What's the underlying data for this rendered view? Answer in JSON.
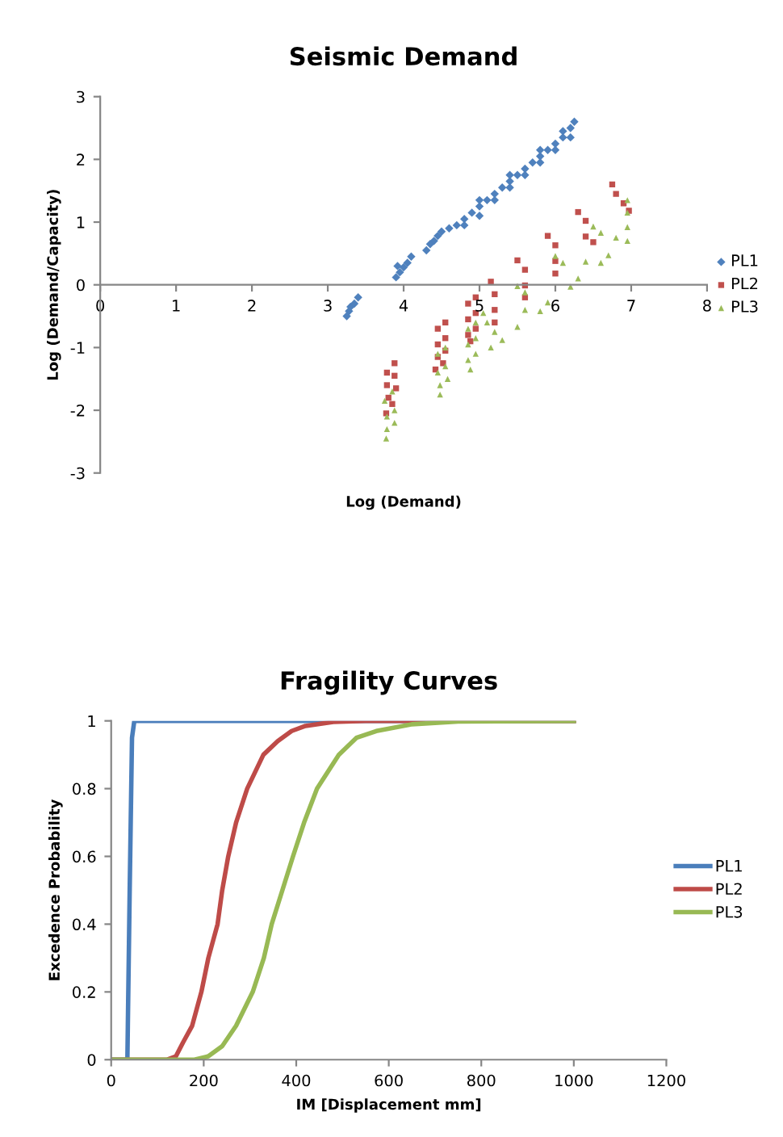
{
  "chart_data": [
    {
      "type": "scatter",
      "title": "Seismic Demand",
      "xlabel": "Log (Demand)",
      "ylabel": "Log (Demand/Capacity)",
      "xlim": [
        0,
        8
      ],
      "xticks": [
        0,
        1,
        2,
        3,
        4,
        5,
        6,
        7,
        8
      ],
      "ylim": [
        -3,
        3
      ],
      "yticks": [
        -3,
        -2,
        -1,
        0,
        1,
        2,
        3
      ],
      "grid": false,
      "legend": "right",
      "series": [
        {
          "name": "PL1",
          "color": "#4f81bd",
          "marker": "diamond",
          "x": [
            3.28,
            3.3,
            3.35,
            3.4,
            3.25,
            3.9,
            3.95,
            4.0,
            4.05,
            4.1,
            3.92,
            4.3,
            4.35,
            4.4,
            4.45,
            4.5,
            4.6,
            4.7,
            4.8,
            4.9,
            5.0,
            5.1,
            5.2,
            5.3,
            5.4,
            5.5,
            5.6,
            5.7,
            5.8,
            5.9,
            6.0,
            6.1,
            6.2,
            6.25,
            4.8,
            5.0,
            5.2,
            5.4,
            5.6,
            5.8,
            6.0,
            6.2,
            5.0,
            5.4,
            5.8,
            6.1
          ],
          "values": [
            -0.42,
            -0.35,
            -0.3,
            -0.2,
            -0.5,
            0.12,
            0.2,
            0.28,
            0.35,
            0.45,
            0.3,
            0.55,
            0.65,
            0.7,
            0.78,
            0.85,
            0.9,
            0.95,
            1.05,
            1.15,
            1.25,
            1.35,
            1.45,
            1.55,
            1.65,
            1.75,
            1.85,
            1.95,
            2.05,
            2.15,
            2.25,
            2.35,
            2.5,
            2.6,
            0.95,
            1.1,
            1.35,
            1.55,
            1.75,
            1.95,
            2.15,
            2.35,
            1.35,
            1.75,
            2.15,
            2.45
          ]
        },
        {
          "name": "PL2",
          "color": "#c0504d",
          "marker": "square",
          "x": [
            5.15,
            5.5,
            5.9,
            6.3,
            6.75,
            5.2,
            5.6,
            6.0,
            6.4,
            6.8,
            5.2,
            5.6,
            6.0,
            6.4,
            6.9,
            5.2,
            5.6,
            6.0,
            6.5,
            6.97,
            4.85,
            4.95,
            4.85,
            4.95,
            4.85,
            4.95,
            4.88,
            4.45,
            4.55,
            4.45,
            4.55,
            4.45,
            4.55,
            4.42,
            4.52,
            3.78,
            3.88,
            3.78,
            3.88,
            3.8,
            3.9,
            3.77,
            3.85
          ],
          "values": [
            0.05,
            0.39,
            0.78,
            1.16,
            1.6,
            -0.15,
            0.24,
            0.63,
            1.02,
            1.45,
            -0.4,
            -0.01,
            0.38,
            0.77,
            1.3,
            -0.6,
            -0.2,
            0.18,
            0.68,
            1.18,
            -0.3,
            -0.2,
            -0.55,
            -0.45,
            -0.8,
            -0.7,
            -0.9,
            -0.7,
            -0.6,
            -0.95,
            -0.85,
            -1.15,
            -1.05,
            -1.35,
            -1.25,
            -1.4,
            -1.25,
            -1.6,
            -1.45,
            -1.8,
            -1.65,
            -2.05,
            -1.9
          ]
        },
        {
          "name": "PL3",
          "color": "#9bbb59",
          "marker": "triangle",
          "x": [
            5.05,
            5.5,
            6.0,
            6.5,
            6.95,
            5.1,
            5.6,
            6.1,
            6.6,
            6.95,
            5.15,
            5.5,
            5.9,
            6.3,
            6.7,
            6.95,
            5.2,
            5.6,
            6.4,
            6.8,
            6.95,
            5.3,
            5.8,
            6.2,
            6.6,
            4.85,
            4.95,
            4.85,
            4.95,
            4.85,
            4.95,
            4.88,
            4.45,
            4.55,
            4.45,
            4.55,
            4.48,
            4.58,
            4.48,
            3.75,
            3.85,
            3.78,
            3.88,
            3.78,
            3.88,
            3.77
          ],
          "values": [
            -0.45,
            -0.02,
            0.46,
            0.93,
            1.35,
            -0.6,
            -0.12,
            0.35,
            0.83,
            1.15,
            -1.0,
            -0.67,
            -0.28,
            0.1,
            0.47,
            0.7,
            -0.75,
            -0.4,
            0.37,
            0.75,
            0.92,
            -0.88,
            -0.42,
            -0.03,
            0.35,
            -0.7,
            -0.6,
            -0.95,
            -0.85,
            -1.2,
            -1.1,
            -1.35,
            -1.1,
            -1.0,
            -1.4,
            -1.3,
            -1.6,
            -1.5,
            -1.75,
            -1.85,
            -1.7,
            -2.1,
            -2.0,
            -2.3,
            -2.2,
            -2.45
          ]
        }
      ]
    },
    {
      "type": "line",
      "title": "Fragility Curves",
      "xlabel": "IM [Displacement mm]",
      "ylabel": "Excedence Probability",
      "xlim": [
        0,
        1200
      ],
      "xticks": [
        0,
        200,
        400,
        600,
        800,
        1000,
        1200
      ],
      "ylim": [
        0,
        1
      ],
      "yticks": [
        0,
        0.2,
        0.4,
        0.6,
        0.8,
        1
      ],
      "grid": false,
      "legend": "right",
      "marker": "none",
      "line_style": "solid",
      "series": [
        {
          "name": "PL1",
          "color": "#4a7ebb",
          "x": [
            0,
            35,
            40,
            45,
            50,
            1000
          ],
          "values": [
            0,
            0,
            0.5,
            0.95,
            1,
            1
          ]
        },
        {
          "name": "PL2",
          "color": "#be4b48",
          "x": [
            0,
            120,
            140,
            155,
            175,
            195,
            210,
            230,
            240,
            253,
            270,
            294,
            329,
            360,
            390,
            420,
            480,
            550,
            1000
          ],
          "values": [
            0,
            0,
            0.01,
            0.05,
            0.1,
            0.2,
            0.3,
            0.4,
            0.5,
            0.6,
            0.7,
            0.8,
            0.9,
            0.94,
            0.97,
            0.985,
            0.997,
            1,
            1
          ]
        },
        {
          "name": "PL3",
          "color": "#98b954",
          "x": [
            0,
            180,
            210,
            240,
            270,
            306,
            330,
            347,
            370,
            393,
            417,
            445,
            492,
            530,
            573,
            650,
            750,
            1000
          ],
          "values": [
            0,
            0,
            0.01,
            0.04,
            0.1,
            0.2,
            0.3,
            0.4,
            0.5,
            0.6,
            0.7,
            0.8,
            0.9,
            0.95,
            0.97,
            0.99,
            0.998,
            1
          ]
        }
      ]
    }
  ]
}
